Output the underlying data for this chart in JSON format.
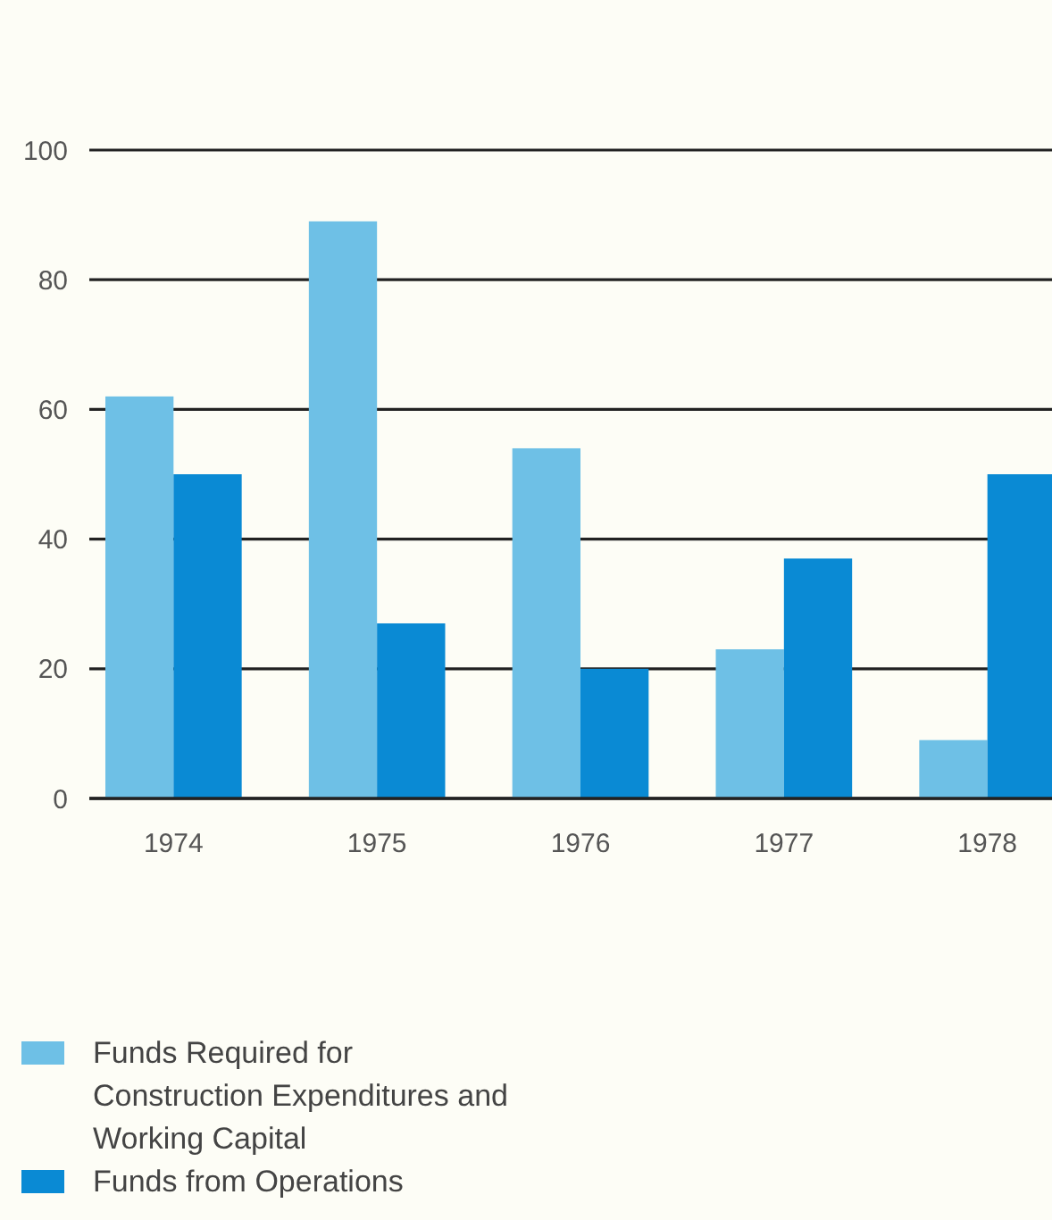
{
  "chart_data": {
    "type": "bar",
    "categories": [
      "1974",
      "1975",
      "1976",
      "1977",
      "1978"
    ],
    "series": [
      {
        "name": "Funds Required for Construction Expenditures and Working Capital",
        "color": "#6ec0e6",
        "values": [
          62,
          89,
          54,
          23,
          9
        ]
      },
      {
        "name": "Funds from Operations",
        "color": "#0a8ad4",
        "values": [
          50,
          27,
          20,
          37,
          50
        ]
      }
    ],
    "ylim": [
      0,
      100
    ],
    "yticks": [
      0,
      20,
      40,
      60,
      80,
      100
    ],
    "grid": "y",
    "legend": "bottom"
  }
}
